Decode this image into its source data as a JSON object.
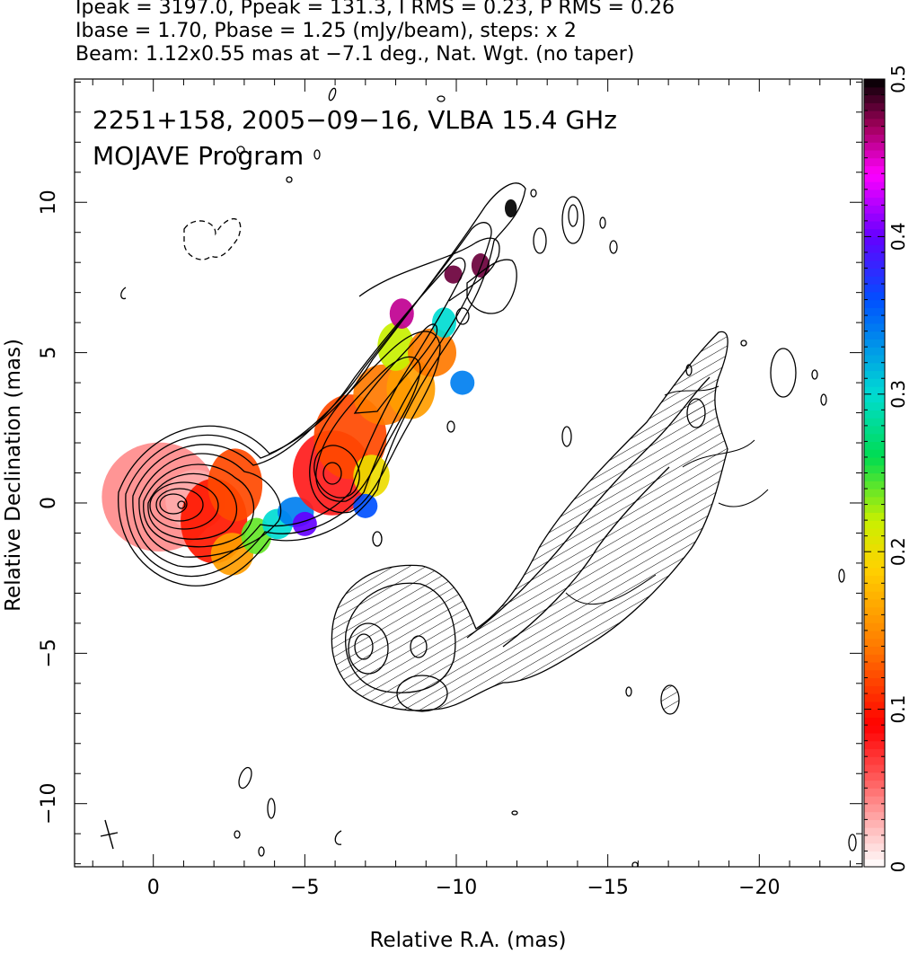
{
  "header": {
    "line1": "Ipeak = 3197.0, Ppeak = 131.3, I RMS = 0.23, P RMS = 0.26",
    "line2": "Ibase = 1.70, Pbase = 1.25 (mJy/beam), steps: x 2",
    "line3": "Beam: 1.12x0.55 mas at −7.1 deg., Nat. Wgt. (no taper)"
  },
  "chart_data": {
    "type": "heatmap",
    "title": "2251+158, 2005−09−16, VLBA 15.4 GHz",
    "subtitle": "MOJAVE Program",
    "xlabel": "Relative R.A. (mas)",
    "ylabel": "Relative Declination (mas)",
    "xlim": [
      2.6,
      -23.4
    ],
    "ylim": [
      -12.1,
      14.1
    ],
    "x_ticks": [
      0,
      -5,
      -10,
      -15,
      -20
    ],
    "y_ticks": [
      -10,
      -5,
      0,
      5,
      10
    ],
    "x_tick_labels": [
      "0",
      "−5",
      "−10",
      "−15",
      "−20"
    ],
    "y_tick_labels": [
      "−10",
      "−5",
      "0",
      "5",
      "10"
    ],
    "colorbar": {
      "range": [
        0,
        0.5
      ],
      "ticks": [
        0,
        0.1,
        0.2,
        0.3,
        0.4,
        0.5
      ],
      "tick_labels": [
        "0",
        "0.1",
        "0.2",
        "0.3",
        "0.4",
        "0.5"
      ],
      "stops": [
        {
          "v": 0.0,
          "color": "#ffffff"
        },
        {
          "v": 0.02,
          "color": "#ffc8c8"
        },
        {
          "v": 0.06,
          "color": "#ff5050"
        },
        {
          "v": 0.09,
          "color": "#ff0000"
        },
        {
          "v": 0.14,
          "color": "#ff7a00"
        },
        {
          "v": 0.19,
          "color": "#ffd200"
        },
        {
          "v": 0.22,
          "color": "#c8f000"
        },
        {
          "v": 0.26,
          "color": "#00dc50"
        },
        {
          "v": 0.3,
          "color": "#00dcd2"
        },
        {
          "v": 0.36,
          "color": "#0050ff"
        },
        {
          "v": 0.4,
          "color": "#6400ff"
        },
        {
          "v": 0.44,
          "color": "#ff00ff"
        },
        {
          "v": 0.47,
          "color": "#a0005a"
        },
        {
          "v": 0.5,
          "color": "#000000"
        }
      ]
    },
    "ipeak_mJy_per_beam": 3197.0,
    "ppeak_mJy_per_beam": 131.3,
    "ibase_mJy_per_beam": 1.7,
    "pbase_mJy_per_beam": 1.25,
    "contour_step_factor": 2,
    "beam": {
      "major_mas": 1.12,
      "minor_mas": 0.55,
      "pa_deg": -7.1
    },
    "fractional_polarization_patches": [
      {
        "x": 0.2,
        "y": 0.2,
        "rx": 1.9,
        "ry": 1.8,
        "frac": 0.04
      },
      {
        "x": 1.4,
        "y": 0.1,
        "rx": 1.0,
        "ry": 1.0,
        "frac": 0.03
      },
      {
        "x": 2.0,
        "y": -0.6,
        "rx": 1.1,
        "ry": 1.4,
        "frac": 0.1
      },
      {
        "x": 2.7,
        "y": 0.6,
        "rx": 0.9,
        "ry": 1.2,
        "frac": 0.12
      },
      {
        "x": 2.6,
        "y": -1.7,
        "rx": 0.7,
        "ry": 0.7,
        "frac": 0.16
      },
      {
        "x": 3.4,
        "y": -1.1,
        "rx": 0.5,
        "ry": 0.6,
        "frac": 0.24
      },
      {
        "x": 4.1,
        "y": -0.7,
        "rx": 0.5,
        "ry": 0.5,
        "frac": 0.3
      },
      {
        "x": 4.7,
        "y": -0.3,
        "rx": 0.6,
        "ry": 0.5,
        "frac": 0.34
      },
      {
        "x": 5.0,
        "y": -0.7,
        "rx": 0.4,
        "ry": 0.4,
        "frac": 0.4
      },
      {
        "x": 5.9,
        "y": 1.0,
        "rx": 1.3,
        "ry": 1.4,
        "frac": 0.08
      },
      {
        "x": 6.5,
        "y": 2.2,
        "rx": 1.2,
        "ry": 1.4,
        "frac": 0.12
      },
      {
        "x": 7.2,
        "y": 0.9,
        "rx": 0.6,
        "ry": 0.7,
        "frac": 0.2
      },
      {
        "x": 7.0,
        "y": -0.1,
        "rx": 0.4,
        "ry": 0.4,
        "frac": 0.36
      },
      {
        "x": 7.6,
        "y": 3.6,
        "rx": 1.0,
        "ry": 1.0,
        "frac": 0.14
      },
      {
        "x": 8.5,
        "y": 3.8,
        "rx": 0.8,
        "ry": 1.0,
        "frac": 0.16
      },
      {
        "x": 8.0,
        "y": 5.2,
        "rx": 0.6,
        "ry": 0.8,
        "frac": 0.22
      },
      {
        "x": 9.2,
        "y": 5.0,
        "rx": 0.8,
        "ry": 0.8,
        "frac": 0.14
      },
      {
        "x": 9.6,
        "y": 6.0,
        "rx": 0.4,
        "ry": 0.5,
        "frac": 0.3
      },
      {
        "x": 8.2,
        "y": 6.3,
        "rx": 0.4,
        "ry": 0.5,
        "frac": 0.46
      },
      {
        "x": 10.2,
        "y": 4.0,
        "rx": 0.4,
        "ry": 0.4,
        "frac": 0.34
      },
      {
        "x": 10.8,
        "y": 7.9,
        "rx": 0.3,
        "ry": 0.4,
        "frac": 0.48
      },
      {
        "x": 9.9,
        "y": 7.6,
        "rx": 0.3,
        "ry": 0.3,
        "frac": 0.48
      },
      {
        "x": 11.8,
        "y": 9.8,
        "rx": 0.2,
        "ry": 0.3,
        "frac": 0.5
      }
    ]
  }
}
